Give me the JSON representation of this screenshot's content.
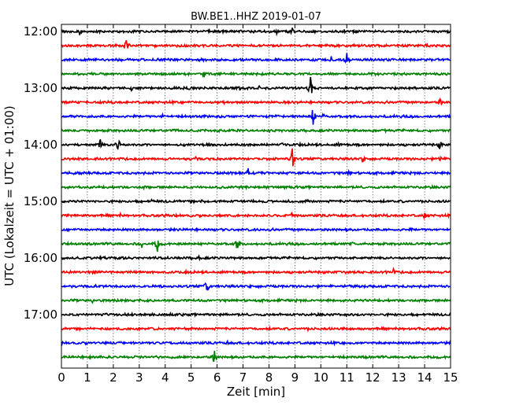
{
  "chart_data": {
    "type": "line",
    "title": "BW.BE1..HHZ 2019-01-07",
    "xlabel": "Zeit  [min]",
    "ylabel": "UTC (Lokalzeit = UTC + 01:00)",
    "xlim": [
      0,
      15
    ],
    "x_ticks": [
      "0",
      "1",
      "2",
      "3",
      "4",
      "5",
      "6",
      "7",
      "8",
      "9",
      "10",
      "11",
      "12",
      "13",
      "14",
      "15"
    ],
    "y_tick_labels": [
      "12:00",
      "13:00",
      "14:00",
      "15:00",
      "16:00",
      "17:00"
    ],
    "grid": "vertical dotted",
    "trace_colors": [
      "#000000",
      "#ff0000",
      "#0000ff",
      "#008000"
    ],
    "traces": [
      {
        "start": "12:00",
        "events": [
          {
            "t": 0.7,
            "a": 0.25
          },
          {
            "t": 1.4,
            "a": 0.2
          },
          {
            "t": 5.7,
            "a": 0.2
          },
          {
            "t": 8.3,
            "a": 0.2
          },
          {
            "t": 8.9,
            "a": 0.4
          },
          {
            "t": 10.9,
            "a": 0.2
          }
        ]
      },
      {
        "start": "12:15",
        "events": [
          {
            "t": 2.5,
            "a": 0.8
          },
          {
            "t": 5.9,
            "a": 0.15
          }
        ]
      },
      {
        "start": "12:30",
        "events": [
          {
            "t": 5.3,
            "a": 0.15
          },
          {
            "t": 9.7,
            "a": 0.25
          },
          {
            "t": 10.4,
            "a": 0.35
          },
          {
            "t": 11.0,
            "a": 0.55
          }
        ]
      },
      {
        "start": "12:45",
        "events": [
          {
            "t": 5.5,
            "a": 0.3
          },
          {
            "t": 12.0,
            "a": 0.15
          }
        ]
      },
      {
        "start": "13:00",
        "events": [
          {
            "t": 2.7,
            "a": 0.2
          },
          {
            "t": 4.9,
            "a": 0.2
          },
          {
            "t": 6.9,
            "a": 0.3
          },
          {
            "t": 7.6,
            "a": 0.3
          },
          {
            "t": 9.6,
            "a": 0.9
          }
        ]
      },
      {
        "start": "13:15",
        "events": [
          {
            "t": 6.3,
            "a": 0.2
          },
          {
            "t": 14.6,
            "a": 0.35
          }
        ]
      },
      {
        "start": "13:30",
        "events": [
          {
            "t": 3.9,
            "a": 0.3
          },
          {
            "t": 9.7,
            "a": 0.8
          },
          {
            "t": 10.1,
            "a": 0.3
          }
        ]
      },
      {
        "start": "13:45",
        "events": [
          {
            "t": 5.0,
            "a": 0.15
          },
          {
            "t": 12.5,
            "a": 0.15
          }
        ]
      },
      {
        "start": "14:00",
        "events": [
          {
            "t": 1.5,
            "a": 0.6
          },
          {
            "t": 2.2,
            "a": 0.95
          },
          {
            "t": 8.5,
            "a": 0.2
          },
          {
            "t": 10.7,
            "a": 0.25
          },
          {
            "t": 14.6,
            "a": 0.5
          }
        ]
      },
      {
        "start": "14:15",
        "events": [
          {
            "t": 5.2,
            "a": 0.25
          },
          {
            "t": 8.9,
            "a": 1.1
          },
          {
            "t": 11.6,
            "a": 0.3
          },
          {
            "t": 14.6,
            "a": 0.3
          }
        ]
      },
      {
        "start": "14:30",
        "events": [
          {
            "t": 4.6,
            "a": 0.2
          },
          {
            "t": 7.2,
            "a": 0.4
          },
          {
            "t": 11.1,
            "a": 0.35
          }
        ]
      },
      {
        "start": "14:45",
        "events": [
          {
            "t": 3.2,
            "a": 0.2
          },
          {
            "t": 11.5,
            "a": 0.15
          }
        ]
      },
      {
        "start": "15:00",
        "events": [
          {
            "t": 3.5,
            "a": 0.2
          },
          {
            "t": 5.4,
            "a": 0.15
          },
          {
            "t": 9.5,
            "a": 0.15
          }
        ]
      },
      {
        "start": "15:15",
        "events": [
          {
            "t": 2.3,
            "a": 0.25
          },
          {
            "t": 8.9,
            "a": 0.3
          },
          {
            "t": 14.0,
            "a": 0.3
          }
        ]
      },
      {
        "start": "15:30",
        "events": [
          {
            "t": 13.5,
            "a": 0.15
          }
        ]
      },
      {
        "start": "15:45",
        "events": [
          {
            "t": 3.1,
            "a": 0.35
          },
          {
            "t": 3.7,
            "a": 0.6
          },
          {
            "t": 6.8,
            "a": 0.7
          },
          {
            "t": 11.2,
            "a": 0.2
          }
        ]
      },
      {
        "start": "16:00",
        "events": [
          {
            "t": 1.5,
            "a": 0.2
          },
          {
            "t": 2.3,
            "a": 0.2
          },
          {
            "t": 5.3,
            "a": 0.2
          },
          {
            "t": 14.9,
            "a": 0.2
          }
        ]
      },
      {
        "start": "16:15",
        "events": [
          {
            "t": 12.8,
            "a": 0.3
          }
        ]
      },
      {
        "start": "16:30",
        "events": [
          {
            "t": 5.6,
            "a": 0.7
          },
          {
            "t": 1.3,
            "a": 0.15
          }
        ]
      },
      {
        "start": "16:45",
        "events": [
          {
            "t": 1.2,
            "a": 0.2
          },
          {
            "t": 13.5,
            "a": 0.15
          }
        ]
      },
      {
        "start": "17:00",
        "events": [
          {
            "t": 6.1,
            "a": 0.2
          },
          {
            "t": 11.0,
            "a": 0.15
          }
        ]
      },
      {
        "start": "17:15",
        "events": [
          {
            "t": 1.8,
            "a": 0.2
          },
          {
            "t": 9.5,
            "a": 0.15
          }
        ]
      },
      {
        "start": "17:30",
        "events": [
          {
            "t": 6.4,
            "a": 0.15
          }
        ]
      },
      {
        "start": "17:45",
        "events": [
          {
            "t": 5.9,
            "a": 0.7
          },
          {
            "t": 1.1,
            "a": 0.15
          }
        ]
      }
    ]
  }
}
